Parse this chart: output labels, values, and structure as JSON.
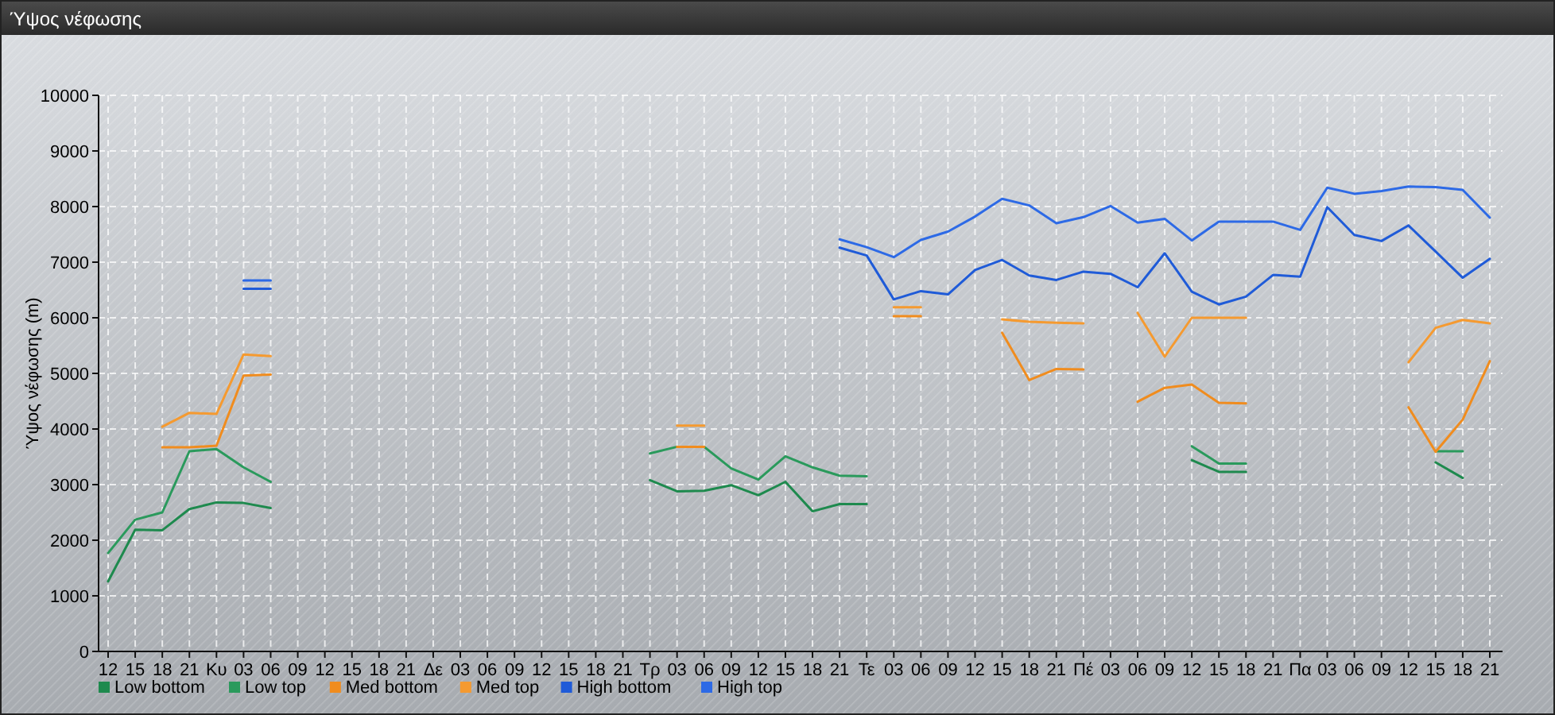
{
  "chart_data": {
    "type": "line",
    "title": "Ύψος νέφωσης",
    "ylabel": "Ύψος νέφωσης (m)",
    "categories": [
      "12",
      "15",
      "18",
      "21",
      "Κυ",
      "03",
      "06",
      "09",
      "12",
      "15",
      "18",
      "21",
      "Δε",
      "03",
      "06",
      "09",
      "12",
      "15",
      "18",
      "21",
      "Τρ",
      "03",
      "06",
      "09",
      "12",
      "15",
      "18",
      "21",
      "Τε",
      "03",
      "06",
      "09",
      "12",
      "15",
      "18",
      "21",
      "Πέ",
      "03",
      "06",
      "09",
      "12",
      "15",
      "18",
      "21",
      "Πα",
      "03",
      "06",
      "09",
      "12",
      "15",
      "18",
      "21"
    ],
    "ylim": [
      0,
      10000
    ],
    "yticks": [
      0,
      1000,
      2000,
      3000,
      4000,
      5000,
      6000,
      7000,
      8000,
      9000,
      10000
    ],
    "grid": true,
    "legend": "bottom",
    "marker": "none",
    "line_style": "solid",
    "series": [
      {
        "name": "Low bottom",
        "color": "#1e8a4e",
        "values": [
          1260,
          2190,
          2180,
          2560,
          2680,
          2670,
          2580,
          null,
          null,
          null,
          null,
          null,
          null,
          null,
          null,
          null,
          null,
          null,
          null,
          null,
          3080,
          2880,
          2890,
          2990,
          2810,
          3050,
          2520,
          2650,
          2650,
          null,
          null,
          null,
          null,
          null,
          null,
          null,
          null,
          null,
          null,
          null,
          3440,
          3230,
          3230,
          null,
          null,
          null,
          null,
          null,
          null,
          3400,
          3120,
          null
        ]
      },
      {
        "name": "Low top",
        "color": "#2a9a5c",
        "values": [
          1770,
          2370,
          2500,
          3600,
          3640,
          3310,
          3050,
          null,
          null,
          null,
          null,
          null,
          null,
          null,
          null,
          null,
          null,
          null,
          null,
          null,
          3560,
          3680,
          3680,
          3290,
          3090,
          3510,
          3310,
          3160,
          3150,
          null,
          null,
          null,
          null,
          null,
          null,
          null,
          null,
          null,
          null,
          null,
          3690,
          3380,
          3380,
          null,
          null,
          null,
          null,
          null,
          null,
          3600,
          3600,
          null
        ]
      },
      {
        "name": "Med bottom",
        "color": "#f08c1e",
        "values": [
          null,
          null,
          3670,
          3670,
          3700,
          4960,
          4980,
          null,
          null,
          null,
          null,
          null,
          null,
          null,
          null,
          null,
          null,
          null,
          null,
          null,
          null,
          3680,
          3680,
          null,
          null,
          null,
          null,
          null,
          null,
          6030,
          6030,
          null,
          null,
          5730,
          4880,
          5080,
          5070,
          null,
          4490,
          4740,
          4800,
          4470,
          4460,
          null,
          null,
          null,
          null,
          null,
          4390,
          3590,
          4170,
          5220
        ]
      },
      {
        "name": "Med top",
        "color": "#f59a30",
        "values": [
          null,
          null,
          4040,
          4290,
          4270,
          5340,
          5310,
          null,
          null,
          null,
          null,
          null,
          null,
          null,
          null,
          null,
          null,
          null,
          null,
          null,
          null,
          4060,
          4060,
          null,
          null,
          null,
          null,
          null,
          null,
          6190,
          6190,
          null,
          null,
          5970,
          5930,
          5910,
          5900,
          null,
          6090,
          5300,
          6000,
          6000,
          6000,
          null,
          null,
          null,
          null,
          null,
          5200,
          5820,
          5960,
          5900
        ]
      },
      {
        "name": "High bottom",
        "color": "#1f5bd8",
        "values": [
          null,
          null,
          null,
          null,
          null,
          6520,
          6520,
          null,
          null,
          null,
          null,
          null,
          null,
          null,
          null,
          null,
          null,
          null,
          null,
          null,
          null,
          null,
          null,
          null,
          null,
          null,
          null,
          7260,
          7120,
          6330,
          6480,
          6420,
          6860,
          7040,
          6760,
          6680,
          6830,
          6790,
          6550,
          7160,
          6470,
          6240,
          6380,
          6770,
          6740,
          7990,
          7490,
          7380,
          7660,
          7190,
          6720,
          7060
        ]
      },
      {
        "name": "High top",
        "color": "#2d6ae6",
        "values": [
          null,
          null,
          null,
          null,
          null,
          6670,
          6670,
          null,
          null,
          null,
          null,
          null,
          null,
          null,
          null,
          null,
          null,
          null,
          null,
          null,
          null,
          null,
          null,
          null,
          null,
          null,
          null,
          7410,
          7270,
          7090,
          7400,
          7550,
          7820,
          8140,
          8020,
          7700,
          7810,
          8010,
          7710,
          7780,
          7390,
          7730,
          7730,
          7730,
          7580,
          8340,
          8230,
          8280,
          8360,
          8350,
          8300,
          7800
        ]
      }
    ]
  }
}
